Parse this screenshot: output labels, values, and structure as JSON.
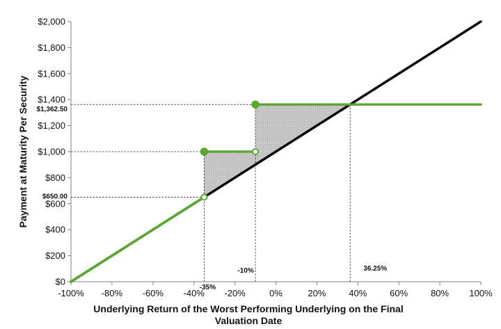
{
  "chart_data": {
    "type": "line",
    "title": "",
    "xlabel_lines": [
      "Underlying Return of the Worst Performing Underlying on the Final",
      "Valuation Date"
    ],
    "ylabel": "Payment at Maturity Per Security",
    "xlim": [
      -100,
      100
    ],
    "ylim": [
      0,
      2000
    ],
    "x_ticks": [
      -100,
      -80,
      -60,
      -40,
      -20,
      0,
      20,
      40,
      60,
      80,
      100
    ],
    "x_tick_labels": [
      "-100%",
      "-80%",
      "-60%",
      "-40%",
      "-20%",
      "0%",
      "20%",
      "40%",
      "60%",
      "80%",
      "100%"
    ],
    "y_ticks": [
      0,
      200,
      400,
      600,
      800,
      1000,
      1200,
      1400,
      1600,
      1800,
      2000
    ],
    "y_tick_labels": [
      "$0",
      "$200",
      "$400",
      "$600",
      "$800",
      "$1,000",
      "$1,200",
      "$1,400",
      "$1,600",
      "$1,800",
      "$2,000"
    ],
    "grid": false,
    "series": [
      {
        "color": "#000000",
        "segments": [
          [
            [
              -100,
              0
            ],
            [
              100,
              2000
            ]
          ]
        ]
      },
      {
        "color": "#5aa832",
        "segments": [
          [
            [
              -100,
              0
            ],
            [
              -35,
              650
            ]
          ],
          [
            [
              -35,
              1000
            ],
            [
              -10,
              1000
            ]
          ],
          [
            [
              -10,
              1362.5
            ],
            [
              100,
              1362.5
            ]
          ]
        ],
        "filled_points": [
          [
            -35,
            1000
          ],
          [
            -10,
            1362.5
          ]
        ],
        "open_points": [
          [
            -35,
            650
          ],
          [
            -10,
            1000
          ]
        ]
      }
    ],
    "shaded_regions": [
      [
        [
          -35,
          650
        ],
        [
          -35,
          1000
        ],
        [
          -10,
          1000
        ],
        [
          -10,
          900
        ]
      ],
      [
        [
          -10,
          900
        ],
        [
          -10,
          1362.5
        ],
        [
          36.25,
          1362.5
        ]
      ]
    ],
    "annotations": [
      {
        "text": "$1,362.50",
        "y": 1362.5
      },
      {
        "text": "$650.00",
        "y": 650
      },
      {
        "text": "-35%",
        "x": -35
      },
      {
        "text": "-10%",
        "x": -10
      },
      {
        "text": "36.25%",
        "x": 36.25
      }
    ],
    "colors": {
      "axis": "#7f7f7f",
      "shade": "#c4c4c4",
      "payoff": "#5aa832",
      "underlying": "#000000"
    }
  }
}
